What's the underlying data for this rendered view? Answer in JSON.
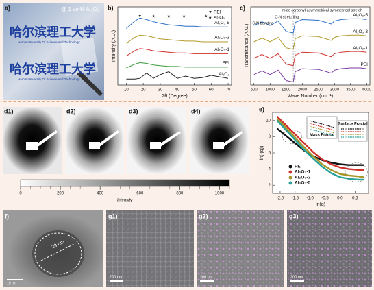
{
  "figure": {
    "panel_labels": [
      "a)",
      "b)",
      "c)",
      "d1)",
      "d2)",
      "d3)",
      "d4)",
      "e)",
      "f)",
      "g1)",
      "g2)",
      "g3)"
    ],
    "photo": {
      "caption": "@ 1 vol% Al₂O₃",
      "logo_text": [
        "哈尔滨理工大学",
        "哈尔滨理工大学"
      ],
      "logo_subtitle": [
        "Harbin University Of Science And Technology",
        "Harbin University Of Science And Technology"
      ]
    },
    "colorbar": {
      "label": "Intensity",
      "lim": [
        0,
        1050
      ],
      "ticks": [
        0,
        200,
        400,
        600,
        800,
        1000
      ]
    },
    "tem": {
      "size_label": "29 nm",
      "scale_bar": "10 nm"
    },
    "sem_scale_bars": [
      "200 nm",
      "200 nm",
      "200 nm"
    ]
  },
  "chart_data": [
    {
      "type": "line",
      "xlabel": "2θ (Degree)",
      "ylabel": "Intensity (A.U.)",
      "xlim": [
        5,
        72
      ],
      "xticks": [
        10,
        20,
        30,
        40,
        50,
        60,
        70
      ],
      "ylim": [
        0,
        10.5
      ],
      "legend": [
        {
          "symbol": "▼",
          "label": "PEI"
        },
        {
          "symbol": "★",
          "label": "Al₂O₃"
        }
      ],
      "peak_markers": [
        {
          "symbol": "▼",
          "x": 18
        },
        {
          "symbol": "★",
          "x": 26
        },
        {
          "symbol": "★",
          "x": 35
        },
        {
          "symbol": "★",
          "x": 44
        },
        {
          "symbol": "★",
          "x": 57
        }
      ],
      "x": [
        10,
        15,
        18,
        22,
        26,
        30,
        35,
        40,
        45,
        50,
        55,
        60,
        65,
        70
      ],
      "series": [
        {
          "name": "Al₂O₃-5",
          "color": "#2a6fc9",
          "values": [
            7.6,
            8.6,
            9.0,
            8.8,
            8.5,
            8.3,
            8.1,
            8.0,
            7.9,
            7.9,
            7.8,
            7.8,
            7.8,
            7.8
          ]
        },
        {
          "name": "Al₂O₃-3",
          "color": "#b39a2a",
          "values": [
            5.6,
            6.4,
            6.7,
            6.6,
            6.4,
            6.2,
            6.1,
            6.0,
            5.9,
            5.9,
            5.8,
            5.8,
            5.8,
            5.8
          ]
        },
        {
          "name": "Al₂O₃-1",
          "color": "#d0312d",
          "values": [
            3.9,
            4.6,
            4.9,
            4.8,
            4.6,
            4.5,
            4.4,
            4.3,
            4.3,
            4.2,
            4.2,
            4.2,
            4.2,
            4.2
          ]
        },
        {
          "name": "PEI",
          "color": "#3a9a3a",
          "values": [
            2.3,
            2.8,
            3.0,
            2.9,
            2.7,
            2.6,
            2.5,
            2.5,
            2.4,
            2.4,
            2.4,
            2.4,
            2.4,
            2.4
          ]
        },
        {
          "name": "Al₂O₃",
          "color": "#222222",
          "values": [
            0.8,
            0.8,
            0.9,
            1.6,
            0.9,
            1.4,
            1.8,
            0.9,
            1.2,
            0.9,
            1.0,
            1.3,
            1.1,
            0.9
          ]
        }
      ]
    },
    {
      "type": "line",
      "xlabel": "Wave Number (cm⁻¹)",
      "ylabel": "Transmittance (A.U.)",
      "xlim": [
        400,
        4100
      ],
      "xticks": [
        500,
        1000,
        1500,
        2000,
        2500,
        3000,
        3500,
        4000
      ],
      "ylim": [
        0,
        10.5
      ],
      "annotations": [
        "imide carbonyl asymmetrical symmetrical stretch",
        "C-N stretching",
        "C-N bending"
      ],
      "x": [
        500,
        750,
        1000,
        1250,
        1500,
        1720,
        1780,
        2000,
        2500,
        2900,
        3000,
        3200,
        3500,
        3800,
        4000
      ],
      "series": [
        {
          "name": "Al₂O₃-5",
          "color": "#2a6fc9",
          "values": [
            8.0,
            8.5,
            8.0,
            8.6,
            7.2,
            7.0,
            8.4,
            8.8,
            8.7,
            8.2,
            8.6,
            8.8,
            8.9,
            8.9,
            8.8
          ]
        },
        {
          "name": "Al₂O₃-3",
          "color": "#b39a2a",
          "values": [
            5.8,
            6.3,
            5.8,
            6.4,
            5.0,
            4.8,
            6.2,
            6.6,
            6.5,
            6.0,
            6.4,
            6.6,
            6.7,
            6.7,
            6.6
          ]
        },
        {
          "name": "Al₂O₃-1",
          "color": "#d0312d",
          "values": [
            3.6,
            4.1,
            3.6,
            4.2,
            2.8,
            2.6,
            4.0,
            4.4,
            4.3,
            3.8,
            4.2,
            4.4,
            4.5,
            4.5,
            4.4
          ]
        },
        {
          "name": "PEI",
          "color": "#7a3aa0",
          "values": [
            1.4,
            1.9,
            1.4,
            2.0,
            0.6,
            0.4,
            1.8,
            2.2,
            2.1,
            1.6,
            2.0,
            2.2,
            2.3,
            2.3,
            2.2
          ]
        }
      ]
    },
    {
      "type": "line",
      "xlabel": "ln(q)",
      "ylabel": "ln(I(q))",
      "xlim": [
        -2.25,
        0.95
      ],
      "xticks": [
        {
          "value": -2,
          "label": "-2.0"
        },
        -1.5,
        {
          "value": -1,
          "label": "-1.0"
        },
        -0.5,
        {
          "value": 0,
          "label": "0.0"
        },
        0.5
      ],
      "ylim": [
        1,
        11
      ],
      "yticks": [
        2,
        4,
        6,
        8,
        10
      ],
      "annotations": [
        "Mass Fractal",
        "Surface Fractal"
      ],
      "x": [
        -2.1,
        -1.8,
        -1.5,
        -1.2,
        -0.9,
        -0.6,
        -0.3,
        0,
        0.3,
        0.6,
        0.8
      ],
      "series": [
        {
          "name": "PEI",
          "color": "#111111",
          "values": [
            9.0,
            8.1,
            7.2,
            6.3,
            5.6,
            5.1,
            4.8,
            4.6,
            4.5,
            4.5,
            4.5
          ]
        },
        {
          "name": "Al₂O₃-1",
          "color": "#d0312d",
          "values": [
            10.5,
            9.4,
            8.3,
            7.2,
            6.1,
            5.2,
            4.6,
            4.2,
            4.0,
            3.9,
            3.9
          ]
        },
        {
          "name": "Al₂O₃-3",
          "color": "#a8962a",
          "values": [
            10.2,
            9.1,
            7.9,
            6.7,
            5.6,
            4.6,
            3.9,
            3.4,
            3.2,
            3.1,
            3.0
          ]
        },
        {
          "name": "Al₂O₃-5",
          "color": "#2aa39a",
          "values": [
            10.0,
            8.8,
            7.6,
            6.4,
            5.3,
            4.3,
            3.5,
            3.0,
            2.8,
            2.7,
            2.7
          ]
        }
      ]
    }
  ]
}
